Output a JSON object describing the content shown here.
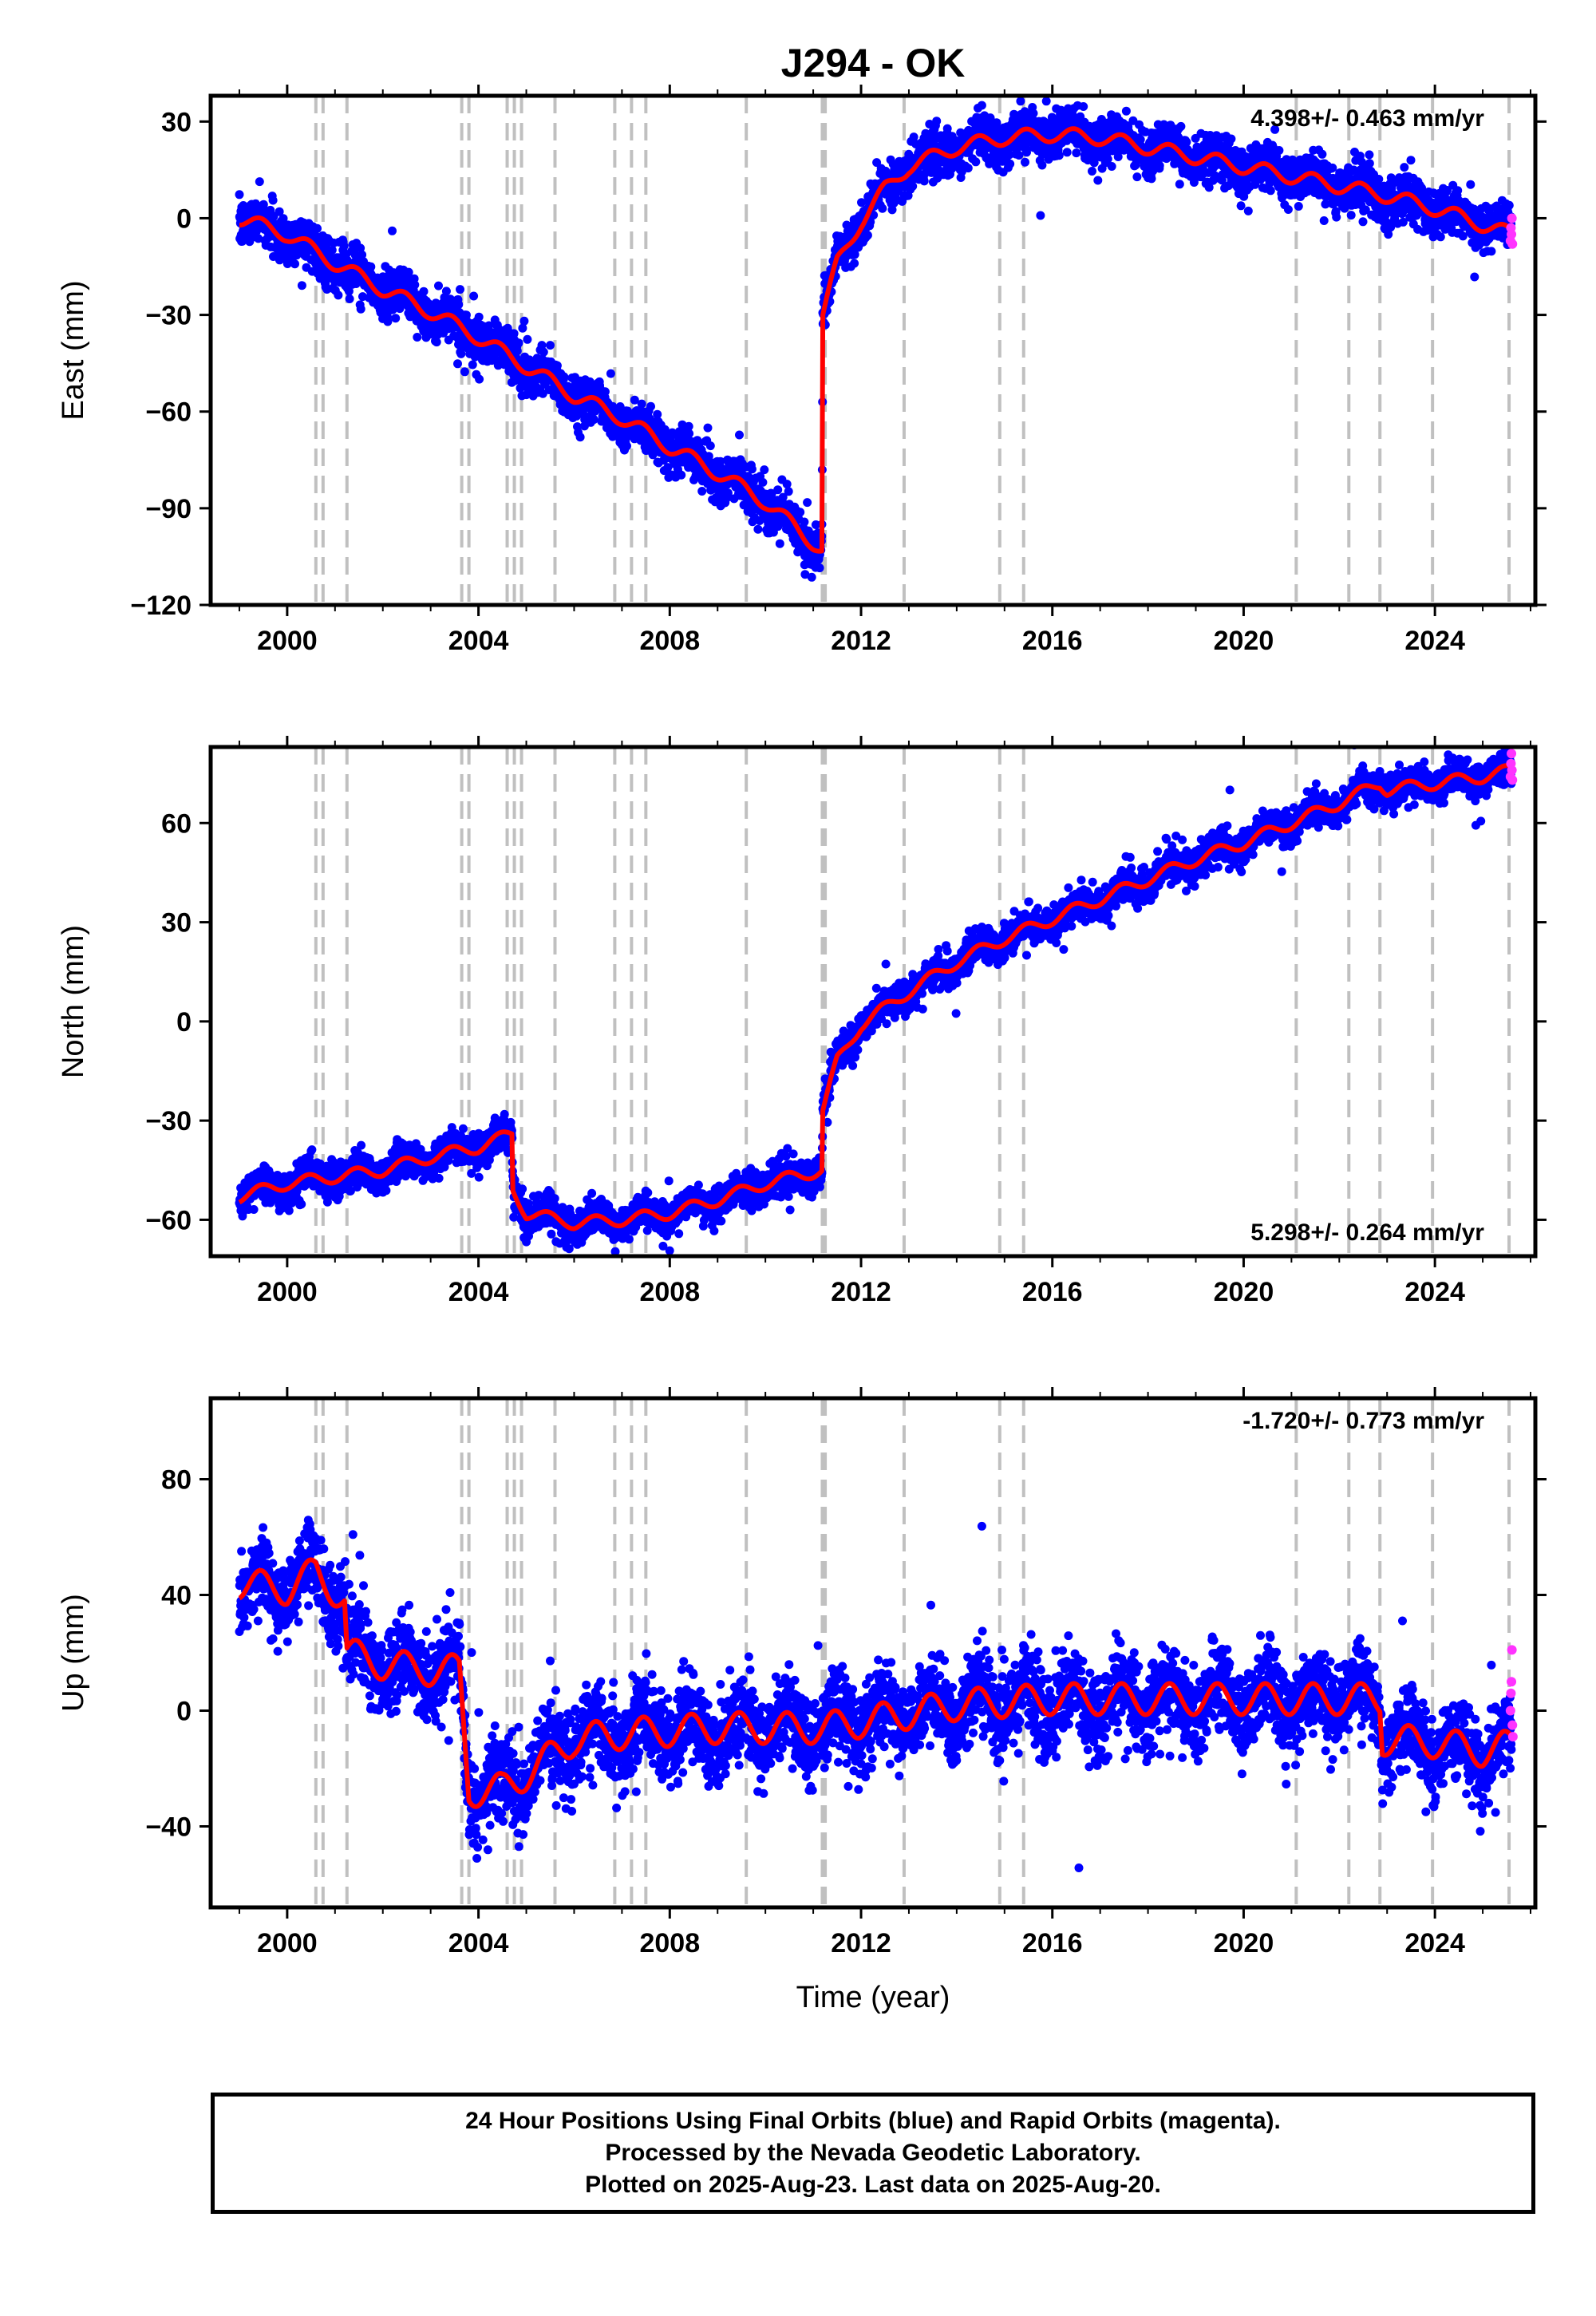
{
  "title": "J294 - OK",
  "x_axis_label": "Time (year)",
  "colors": {
    "final": "#0000ff",
    "rapid": "#ff33ff",
    "model": "#ff0000",
    "steps": "#c0c0c0"
  },
  "footer": {
    "line1": "24 Hour Positions Using Final Orbits (blue) and Rapid Orbits (magenta).",
    "line2": "Processed by the Nevada Geodetic Laboratory.",
    "line3": "Plotted on 2025-Aug-23. Last data on 2025-Aug-20."
  },
  "chart_data": [
    {
      "type": "scatter",
      "panel": "east",
      "ylabel": "East (mm)",
      "rate_label": "4.398+/- 0.463 mm/yr",
      "rate_position": "top-right",
      "xlim": [
        1998.4,
        2026.1
      ],
      "ylim": [
        -120,
        38
      ],
      "xticks": [
        2000,
        2004,
        2008,
        2012,
        2016,
        2020,
        2024
      ],
      "yticks": [
        30,
        0,
        -30,
        -60,
        -90,
        -120
      ],
      "equipment_change_years": [
        2000.6,
        2000.75,
        2001.25,
        2003.65,
        2003.8,
        2004.6,
        2004.75,
        2004.9,
        2005.6,
        2006.85,
        2007.2,
        2007.5,
        2009.6,
        2011.19,
        2011.25,
        2012.9,
        2014.9,
        2015.4,
        2021.1,
        2022.2,
        2022.85,
        2023.95,
        2025.55
      ],
      "model": [
        [
          1999.0,
          0
        ],
        [
          2000.0,
          -5
        ],
        [
          2001.0,
          -14
        ],
        [
          2002.0,
          -22
        ],
        [
          2003.0,
          -29
        ],
        [
          2004.0,
          -37
        ],
        [
          2005.0,
          -46
        ],
        [
          2006.0,
          -55
        ],
        [
          2007.0,
          -62
        ],
        [
          2008.0,
          -71
        ],
        [
          2009.0,
          -79
        ],
        [
          2010.0,
          -88
        ],
        [
          2011.18,
          -103
        ],
        [
          2011.2,
          -30
        ],
        [
          2011.5,
          -14
        ],
        [
          2012.0,
          -1
        ],
        [
          2012.5,
          9
        ],
        [
          2013.0,
          16
        ],
        [
          2014.0,
          22
        ],
        [
          2015.0,
          25
        ],
        [
          2016.0,
          26
        ],
        [
          2017.0,
          25
        ],
        [
          2018.0,
          22
        ],
        [
          2019.0,
          19
        ],
        [
          2020.0,
          16
        ],
        [
          2021.0,
          13
        ],
        [
          2022.0,
          10
        ],
        [
          2023.0,
          7
        ],
        [
          2024.0,
          3
        ],
        [
          2025.0,
          -2
        ],
        [
          2025.6,
          -5
        ]
      ],
      "season_amp": 2.5,
      "scatter": 3.5,
      "rapid_points": [
        [
          2025.58,
          -7
        ],
        [
          2025.59,
          -3
        ],
        [
          2025.6,
          -5
        ],
        [
          2025.61,
          0
        ],
        [
          2025.62,
          -8
        ]
      ]
    },
    {
      "type": "scatter",
      "panel": "north",
      "ylabel": "North (mm)",
      "rate_label": "5.298+/- 0.264 mm/yr",
      "rate_position": "bottom-right",
      "xlim": [
        1998.4,
        2026.1
      ],
      "ylim": [
        -71,
        83
      ],
      "xticks": [
        2000,
        2004,
        2008,
        2012,
        2016,
        2020,
        2024
      ],
      "yticks": [
        60,
        30,
        0,
        -30,
        -60
      ],
      "equipment_change_years": [
        2000.6,
        2000.75,
        2001.25,
        2003.65,
        2003.8,
        2004.6,
        2004.75,
        2004.9,
        2005.6,
        2006.85,
        2007.2,
        2007.5,
        2009.6,
        2011.19,
        2011.25,
        2012.9,
        2014.9,
        2015.4,
        2021.1,
        2022.2,
        2022.85,
        2023.95,
        2025.55
      ],
      "model": [
        [
          1999.0,
          -53
        ],
        [
          2000.0,
          -49
        ],
        [
          2001.0,
          -47
        ],
        [
          2002.0,
          -45
        ],
        [
          2003.0,
          -41
        ],
        [
          2004.0,
          -38
        ],
        [
          2004.7,
          -34
        ],
        [
          2004.72,
          -51
        ],
        [
          2005.0,
          -58
        ],
        [
          2006.0,
          -61
        ],
        [
          2007.0,
          -60
        ],
        [
          2008.0,
          -58
        ],
        [
          2009.0,
          -54
        ],
        [
          2010.0,
          -49
        ],
        [
          2011.18,
          -45
        ],
        [
          2011.2,
          -27
        ],
        [
          2011.5,
          -12
        ],
        [
          2012.0,
          -1
        ],
        [
          2013.0,
          9
        ],
        [
          2014.0,
          18
        ],
        [
          2015.0,
          25
        ],
        [
          2016.0,
          31
        ],
        [
          2017.0,
          37
        ],
        [
          2018.0,
          43
        ],
        [
          2019.0,
          49
        ],
        [
          2020.0,
          54
        ],
        [
          2021.0,
          60
        ],
        [
          2022.0,
          66
        ],
        [
          2022.85,
          72
        ],
        [
          2023.0,
          70
        ],
        [
          2024.0,
          72
        ],
        [
          2025.0,
          74
        ],
        [
          2025.6,
          76
        ]
      ],
      "season_amp": 2.0,
      "scatter": 2.5,
      "rapid_points": [
        [
          2025.58,
          74
        ],
        [
          2025.59,
          78
        ],
        [
          2025.6,
          81
        ],
        [
          2025.61,
          76
        ],
        [
          2025.62,
          73
        ]
      ]
    },
    {
      "type": "scatter",
      "panel": "up",
      "ylabel": "Up (mm)",
      "rate_label": "-1.720+/- 0.773 mm/yr",
      "rate_position": "top-right",
      "xlim": [
        1998.4,
        2026.1
      ],
      "ylim": [
        -68,
        108
      ],
      "xticks": [
        2000,
        2004,
        2008,
        2012,
        2016,
        2020,
        2024
      ],
      "yticks": [
        80,
        40,
        0,
        -40
      ],
      "equipment_change_years": [
        2000.6,
        2000.75,
        2001.25,
        2003.65,
        2003.8,
        2004.6,
        2004.75,
        2004.9,
        2005.6,
        2006.85,
        2007.2,
        2007.5,
        2009.6,
        2011.19,
        2011.25,
        2012.9,
        2014.9,
        2015.4,
        2021.1,
        2022.2,
        2022.85,
        2023.95,
        2025.55
      ],
      "model": [
        [
          1999.0,
          44
        ],
        [
          2000.0,
          42
        ],
        [
          2000.6,
          48
        ],
        [
          2001.2,
          38
        ],
        [
          2001.25,
          20
        ],
        [
          2002.0,
          16
        ],
        [
          2003.0,
          14
        ],
        [
          2003.6,
          14
        ],
        [
          2003.8,
          -28
        ],
        [
          2004.5,
          -27
        ],
        [
          2005.0,
          -22
        ],
        [
          2006.0,
          -10
        ],
        [
          2007.0,
          -8
        ],
        [
          2008.0,
          -7
        ],
        [
          2009.0,
          -6
        ],
        [
          2010.0,
          -6
        ],
        [
          2011.2,
          -6
        ],
        [
          2012.0,
          -4
        ],
        [
          2013.0,
          -1
        ],
        [
          2014.0,
          2
        ],
        [
          2015.0,
          3
        ],
        [
          2016.0,
          4
        ],
        [
          2017.0,
          4
        ],
        [
          2018.0,
          4
        ],
        [
          2019.0,
          4
        ],
        [
          2020.0,
          4
        ],
        [
          2021.0,
          4
        ],
        [
          2022.0,
          4
        ],
        [
          2022.85,
          4
        ],
        [
          2022.9,
          -10
        ],
        [
          2024.0,
          -11
        ],
        [
          2025.0,
          -14
        ],
        [
          2025.6,
          -12
        ]
      ],
      "season_amp": 6,
      "scatter": 7,
      "rapid_points": [
        [
          2025.58,
          0
        ],
        [
          2025.59,
          6
        ],
        [
          2025.6,
          10
        ],
        [
          2025.61,
          21
        ],
        [
          2025.62,
          -5
        ],
        [
          2025.63,
          -9
        ]
      ]
    }
  ]
}
